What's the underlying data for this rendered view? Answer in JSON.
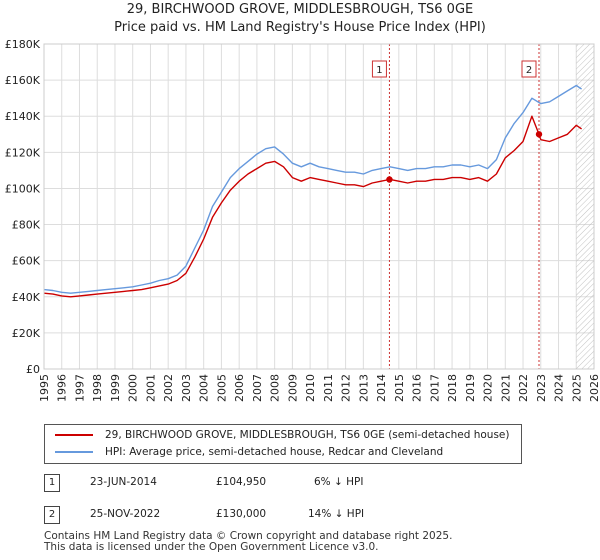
{
  "header": {
    "title": "29, BIRCHWOOD GROVE, MIDDLESBROUGH, TS6 0GE",
    "subtitle": "Price paid vs. HM Land Registry's House Price Index (HPI)"
  },
  "colors": {
    "property": "#cc0000",
    "hpi": "#6699dd",
    "grid": "#dddddd",
    "future_hatch": "#bbbbbb",
    "marker_line": "#cc3333"
  },
  "chart_data": {
    "type": "line",
    "title": "29, BIRCHWOOD GROVE, MIDDLESBROUGH, TS6 0GE",
    "subtitle": "Price paid vs. HM Land Registry's House Price Index (HPI)",
    "xlabel": "",
    "ylabel": "",
    "xlim": [
      1995,
      2026
    ],
    "ylim": [
      0,
      180000
    ],
    "grid": true,
    "y_ticks": [
      {
        "value": 0,
        "label": "£0"
      },
      {
        "value": 20000,
        "label": "£20K"
      },
      {
        "value": 40000,
        "label": "£40K"
      },
      {
        "value": 60000,
        "label": "£60K"
      },
      {
        "value": 80000,
        "label": "£80K"
      },
      {
        "value": 100000,
        "label": "£100K"
      },
      {
        "value": 120000,
        "label": "£120K"
      },
      {
        "value": 140000,
        "label": "£140K"
      },
      {
        "value": 160000,
        "label": "£160K"
      },
      {
        "value": 180000,
        "label": "£180K"
      }
    ],
    "x_ticks": [
      "1995",
      "1996",
      "1997",
      "1998",
      "1999",
      "2000",
      "2001",
      "2002",
      "2003",
      "2004",
      "2005",
      "2006",
      "2007",
      "2008",
      "2009",
      "2010",
      "2011",
      "2012",
      "2013",
      "2014",
      "2015",
      "2016",
      "2017",
      "2018",
      "2019",
      "2020",
      "2021",
      "2022",
      "2023",
      "2024",
      "2025",
      "2026"
    ],
    "future_region_start": 2025.0,
    "legend_position": "bottom",
    "series": [
      {
        "name": "29, BIRCHWOOD GROVE, MIDDLESBROUGH, TS6 0GE (semi-detached house)",
        "color": "#cc0000",
        "points": [
          [
            1995.0,
            42000
          ],
          [
            1995.5,
            41500
          ],
          [
            1996.0,
            40500
          ],
          [
            1996.5,
            40000
          ],
          [
            1997.0,
            40500
          ],
          [
            1997.5,
            41000
          ],
          [
            1998.0,
            41500
          ],
          [
            1998.5,
            42000
          ],
          [
            1999.0,
            42500
          ],
          [
            1999.5,
            43000
          ],
          [
            2000.0,
            43500
          ],
          [
            2000.5,
            44000
          ],
          [
            2001.0,
            45000
          ],
          [
            2001.5,
            46000
          ],
          [
            2002.0,
            47000
          ],
          [
            2002.5,
            49000
          ],
          [
            2003.0,
            53000
          ],
          [
            2003.5,
            62000
          ],
          [
            2004.0,
            72000
          ],
          [
            2004.5,
            84000
          ],
          [
            2005.0,
            92000
          ],
          [
            2005.5,
            99000
          ],
          [
            2006.0,
            104000
          ],
          [
            2006.5,
            108000
          ],
          [
            2007.0,
            111000
          ],
          [
            2007.5,
            114000
          ],
          [
            2008.0,
            115000
          ],
          [
            2008.5,
            112000
          ],
          [
            2009.0,
            106000
          ],
          [
            2009.5,
            104000
          ],
          [
            2010.0,
            106000
          ],
          [
            2010.5,
            105000
          ],
          [
            2011.0,
            104000
          ],
          [
            2011.5,
            103000
          ],
          [
            2012.0,
            102000
          ],
          [
            2012.5,
            102000
          ],
          [
            2013.0,
            101000
          ],
          [
            2013.5,
            103000
          ],
          [
            2014.0,
            104000
          ],
          [
            2014.47,
            104950
          ],
          [
            2014.5,
            105000
          ],
          [
            2015.0,
            104000
          ],
          [
            2015.5,
            103000
          ],
          [
            2016.0,
            104000
          ],
          [
            2016.5,
            104000
          ],
          [
            2017.0,
            105000
          ],
          [
            2017.5,
            105000
          ],
          [
            2018.0,
            106000
          ],
          [
            2018.5,
            106000
          ],
          [
            2019.0,
            105000
          ],
          [
            2019.5,
            106000
          ],
          [
            2020.0,
            104000
          ],
          [
            2020.5,
            108000
          ],
          [
            2021.0,
            117000
          ],
          [
            2021.5,
            121000
          ],
          [
            2022.0,
            126000
          ],
          [
            2022.5,
            140000
          ],
          [
            2022.9,
            130000
          ],
          [
            2023.0,
            127000
          ],
          [
            2023.5,
            126000
          ],
          [
            2024.0,
            128000
          ],
          [
            2024.5,
            130000
          ],
          [
            2025.0,
            135000
          ],
          [
            2025.3,
            133000
          ]
        ]
      },
      {
        "name": "HPI: Average price, semi-detached house, Redcar and Cleveland",
        "color": "#6699dd",
        "points": [
          [
            1995.0,
            44000
          ],
          [
            1995.5,
            43500
          ],
          [
            1996.0,
            42500
          ],
          [
            1996.5,
            42000
          ],
          [
            1997.0,
            42500
          ],
          [
            1997.5,
            43000
          ],
          [
            1998.0,
            43500
          ],
          [
            1998.5,
            44000
          ],
          [
            1999.0,
            44500
          ],
          [
            1999.5,
            45000
          ],
          [
            2000.0,
            45500
          ],
          [
            2000.5,
            46500
          ],
          [
            2001.0,
            47500
          ],
          [
            2001.5,
            49000
          ],
          [
            2002.0,
            50000
          ],
          [
            2002.5,
            52000
          ],
          [
            2003.0,
            57000
          ],
          [
            2003.5,
            67000
          ],
          [
            2004.0,
            77000
          ],
          [
            2004.5,
            90000
          ],
          [
            2005.0,
            98000
          ],
          [
            2005.5,
            106000
          ],
          [
            2006.0,
            111000
          ],
          [
            2006.5,
            115000
          ],
          [
            2007.0,
            119000
          ],
          [
            2007.5,
            122000
          ],
          [
            2008.0,
            123000
          ],
          [
            2008.5,
            119000
          ],
          [
            2009.0,
            114000
          ],
          [
            2009.5,
            112000
          ],
          [
            2010.0,
            114000
          ],
          [
            2010.5,
            112000
          ],
          [
            2011.0,
            111000
          ],
          [
            2011.5,
            110000
          ],
          [
            2012.0,
            109000
          ],
          [
            2012.5,
            109000
          ],
          [
            2013.0,
            108000
          ],
          [
            2013.5,
            110000
          ],
          [
            2014.0,
            111000
          ],
          [
            2014.5,
            112000
          ],
          [
            2015.0,
            111000
          ],
          [
            2015.5,
            110000
          ],
          [
            2016.0,
            111000
          ],
          [
            2016.5,
            111000
          ],
          [
            2017.0,
            112000
          ],
          [
            2017.5,
            112000
          ],
          [
            2018.0,
            113000
          ],
          [
            2018.5,
            113000
          ],
          [
            2019.0,
            112000
          ],
          [
            2019.5,
            113000
          ],
          [
            2020.0,
            111000
          ],
          [
            2020.5,
            116000
          ],
          [
            2021.0,
            128000
          ],
          [
            2021.5,
            136000
          ],
          [
            2022.0,
            142000
          ],
          [
            2022.5,
            150000
          ],
          [
            2023.0,
            147000
          ],
          [
            2023.5,
            148000
          ],
          [
            2024.0,
            151000
          ],
          [
            2024.5,
            154000
          ],
          [
            2025.0,
            157000
          ],
          [
            2025.3,
            155000
          ]
        ]
      }
    ],
    "annotations": [
      {
        "label": "1",
        "x": 2014.47,
        "y": 104950
      },
      {
        "label": "2",
        "x": 2022.9,
        "y": 130000
      }
    ]
  },
  "legend": {
    "items": [
      {
        "label": "29, BIRCHWOOD GROVE, MIDDLESBROUGH, TS6 0GE (semi-detached house)",
        "color": "#cc0000"
      },
      {
        "label": "HPI: Average price, semi-detached house, Redcar and Cleveland",
        "color": "#6699dd"
      }
    ]
  },
  "sales": [
    {
      "num": "1",
      "date": "23-JUN-2014",
      "price": "£104,950",
      "hpi": "6% ↓ HPI"
    },
    {
      "num": "2",
      "date": "25-NOV-2022",
      "price": "£130,000",
      "hpi": "14% ↓ HPI"
    }
  ],
  "footer": {
    "line1": "Contains HM Land Registry data © Crown copyright and database right 2025.",
    "line2": "This data is licensed under the Open Government Licence v3.0."
  }
}
